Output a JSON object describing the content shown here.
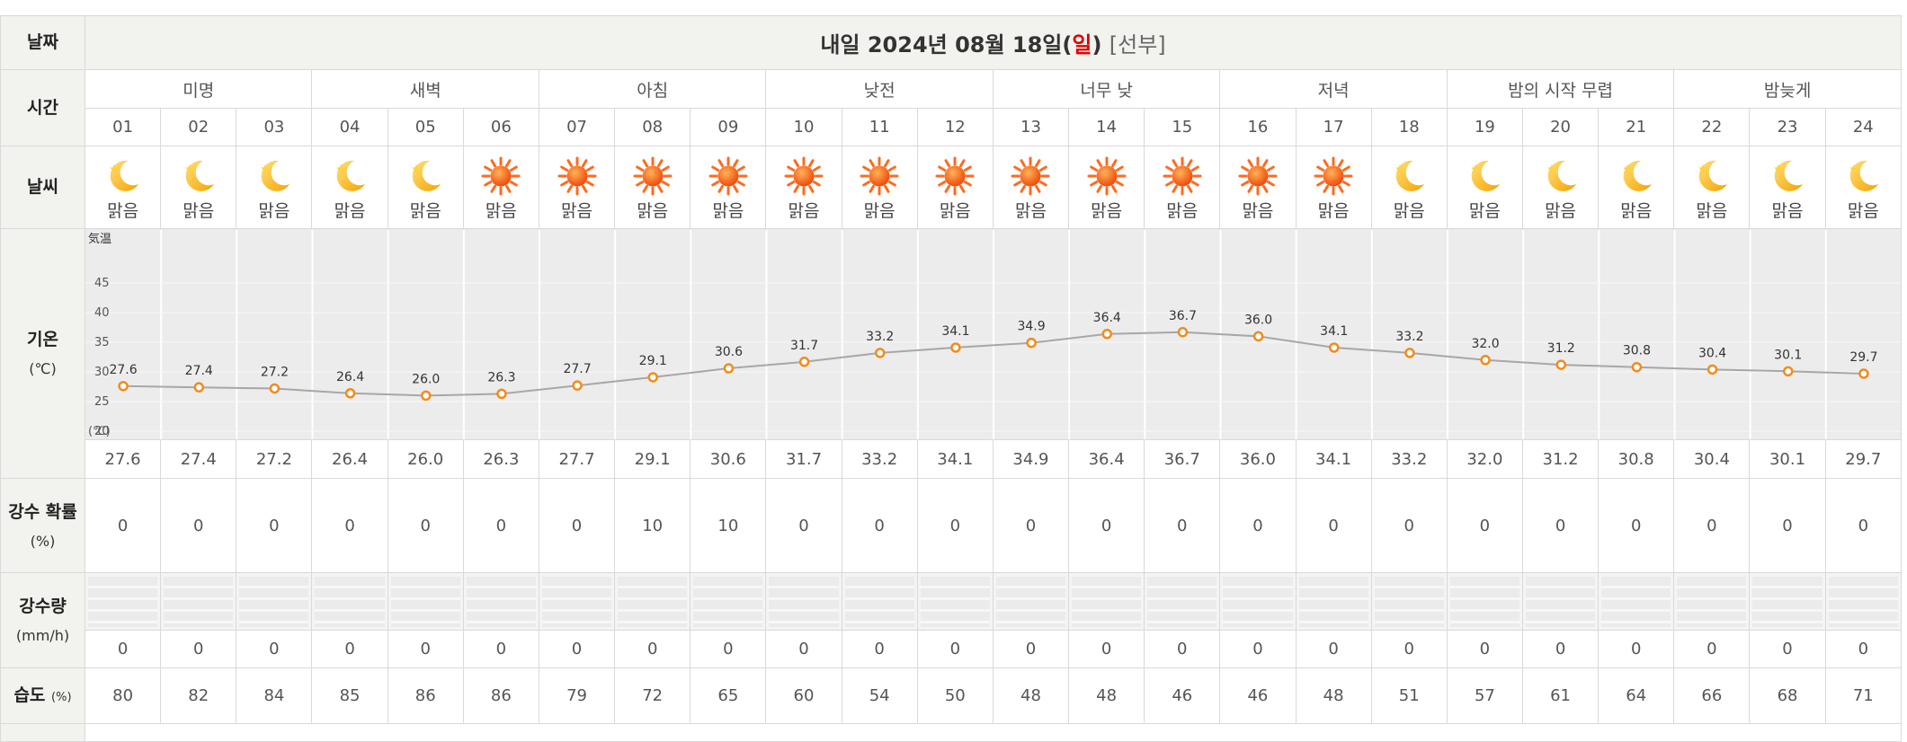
{
  "labels": {
    "date": "날짜",
    "time": "시간",
    "weather": "날씨",
    "temp": "기온",
    "temp_unit": "(℃)",
    "pop": "강수 확률",
    "pop_unit": "(%)",
    "rain": "강수량",
    "rain_unit": "(mm/h)",
    "humidity": "습도",
    "humidity_unit": "(%)"
  },
  "header": {
    "prefix": "내일 2024년 08월 18일(",
    "weekday": "일",
    "suffix": ")",
    "note": "[선부]"
  },
  "periods": [
    "미명",
    "새벽",
    "아침",
    "낮전",
    "너무 낮",
    "저녁",
    "밤의 시작 무렵",
    "밤늦게"
  ],
  "hours": [
    "01",
    "02",
    "03",
    "04",
    "05",
    "06",
    "07",
    "08",
    "09",
    "10",
    "11",
    "12",
    "13",
    "14",
    "15",
    "16",
    "17",
    "18",
    "19",
    "20",
    "21",
    "22",
    "23",
    "24"
  ],
  "sky": [
    "night",
    "night",
    "night",
    "night",
    "night",
    "sun",
    "sun",
    "sun",
    "sun",
    "sun",
    "sun",
    "sun",
    "sun",
    "sun",
    "sun",
    "sun",
    "sun",
    "night",
    "night",
    "night",
    "night",
    "night",
    "night",
    "night"
  ],
  "sky_text": [
    "맑음",
    "맑음",
    "맑음",
    "맑음",
    "맑음",
    "맑음",
    "맑음",
    "맑음",
    "맑음",
    "맑음",
    "맑음",
    "맑음",
    "맑음",
    "맑음",
    "맑음",
    "맑음",
    "맑음",
    "맑음",
    "맑음",
    "맑음",
    "맑음",
    "맑음",
    "맑음",
    "맑음"
  ],
  "temps": [
    "27.6",
    "27.4",
    "27.2",
    "26.4",
    "26.0",
    "26.3",
    "27.7",
    "29.1",
    "30.6",
    "31.7",
    "33.2",
    "34.1",
    "34.9",
    "36.4",
    "36.7",
    "36.0",
    "34.1",
    "33.2",
    "32.0",
    "31.2",
    "30.8",
    "30.4",
    "30.1",
    "29.7"
  ],
  "pop": [
    "0",
    "0",
    "0",
    "0",
    "0",
    "0",
    "0",
    "10",
    "10",
    "0",
    "0",
    "0",
    "0",
    "0",
    "0",
    "0",
    "0",
    "0",
    "0",
    "0",
    "0",
    "0",
    "0",
    "0"
  ],
  "rain": [
    "0",
    "0",
    "0",
    "0",
    "0",
    "0",
    "0",
    "0",
    "0",
    "0",
    "0",
    "0",
    "0",
    "0",
    "0",
    "0",
    "0",
    "0",
    "0",
    "0",
    "0",
    "0",
    "0",
    "0"
  ],
  "humidity": [
    "80",
    "82",
    "84",
    "85",
    "86",
    "86",
    "79",
    "72",
    "65",
    "60",
    "54",
    "50",
    "48",
    "48",
    "46",
    "46",
    "48",
    "51",
    "57",
    "61",
    "64",
    "66",
    "68",
    "71"
  ],
  "chart_data": {
    "type": "line",
    "y_axis_title": "気温",
    "y_unit": "(℃)",
    "ylim": [
      20,
      45
    ],
    "yticks": [
      "45",
      "40",
      "35",
      "30",
      "25",
      "20"
    ],
    "grid": true,
    "x": [
      "01",
      "02",
      "03",
      "04",
      "05",
      "06",
      "07",
      "08",
      "09",
      "10",
      "11",
      "12",
      "13",
      "14",
      "15",
      "16",
      "17",
      "18",
      "19",
      "20",
      "21",
      "22",
      "23",
      "24"
    ],
    "values": [
      27.6,
      27.4,
      27.2,
      26.4,
      26.0,
      26.3,
      27.7,
      29.1,
      30.6,
      31.7,
      33.2,
      34.1,
      34.9,
      36.4,
      36.7,
      36.0,
      34.1,
      33.2,
      32.0,
      31.2,
      30.8,
      30.4,
      30.1,
      29.7
    ],
    "line_color": "#a7a7a7",
    "marker_color": "#f08c1a"
  },
  "colors": {
    "label_bg": "#f2f2ee",
    "sunday": "#e00000",
    "sun": "#ff5a14",
    "moon": "#ffb81f"
  }
}
